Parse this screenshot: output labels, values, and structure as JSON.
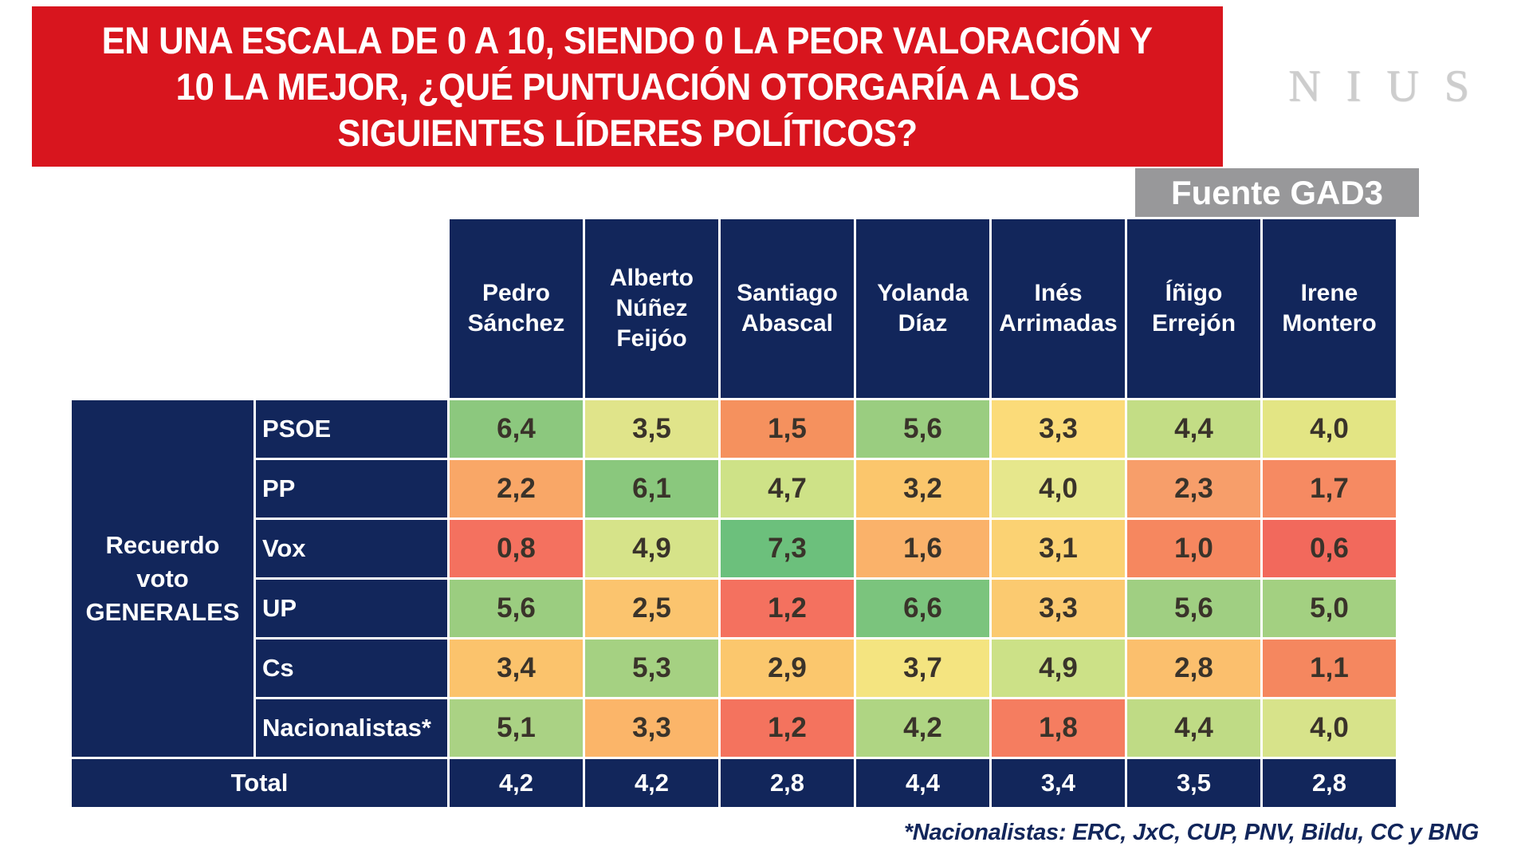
{
  "banner": {
    "lines": [
      "EN UNA ESCALA DE 0 A 10, SIENDO 0 LA PEOR VALORACIÓN Y",
      "10 LA MEJOR, ¿QUÉ PUNTUACIÓN OTORGARÍA A LOS",
      "SIGUIENTES LÍDERES POLÍTICOS?"
    ],
    "background": "#D8151E",
    "text_color": "#FFFFFF"
  },
  "logo": {
    "text": "NIUS",
    "color": "#CDCDCD"
  },
  "source": {
    "label": "Fuente GAD3",
    "background": "#98989A",
    "text_color": "#FFFFFF"
  },
  "table_theme": {
    "header_background": "#12265B",
    "header_text": "#FFFFFF",
    "cell_text": "#3A332A",
    "grid_line": "#FFFFFF"
  },
  "chart_data": {
    "type": "heatmap",
    "title": "EN UNA ESCALA DE 0 A 10, SIENDO 0 LA PEOR VALORACIÓN Y 10 LA MEJOR, ¿QUÉ PUNTUACIÓN OTORGARÍA A LOS SIGUIENTES LÍDERES POLÍTICOS?",
    "source": "Fuente GAD3",
    "scale": {
      "min": 0,
      "max": 10,
      "low_color": "#F8696B",
      "mid_color": "#FFEB84",
      "high_color": "#63BE7B"
    },
    "columns": [
      "Pedro Sánchez",
      "Alberto Núñez Feijóo",
      "Santiago Abascal",
      "Yolanda Díaz",
      "Inés Arrimadas",
      "Íñigo Errejón",
      "Irene Montero"
    ],
    "row_group_label": "Recuerdo voto GENERALES",
    "rows": [
      {
        "label": "PSOE",
        "values": [
          6.4,
          3.5,
          1.5,
          5.6,
          3.3,
          4.4,
          4.0
        ],
        "colors": [
          "#8CC87E",
          "#E0E48A",
          "#F5915E",
          "#9ACD80",
          "#FBDB79",
          "#C3DD85",
          "#E3E584"
        ]
      },
      {
        "label": "PP",
        "values": [
          2.2,
          6.1,
          4.7,
          3.2,
          4.0,
          2.3,
          1.7
        ],
        "colors": [
          "#F9A767",
          "#8AC87D",
          "#CEE287",
          "#FBC66C",
          "#E6E78C",
          "#F79E6A",
          "#F68A62"
        ]
      },
      {
        "label": "Vox",
        "values": [
          0.8,
          4.9,
          7.3,
          1.6,
          3.1,
          1.0,
          0.6
        ],
        "colors": [
          "#F4715F",
          "#D6E389",
          "#6CC07C",
          "#FAB26A",
          "#FBD273",
          "#F6875F",
          "#F2695C"
        ]
      },
      {
        "label": "UP",
        "values": [
          5.6,
          2.5,
          1.2,
          6.6,
          3.3,
          5.6,
          5.0
        ],
        "colors": [
          "#9BCD80",
          "#FBC46E",
          "#F4715F",
          "#7BC47D",
          "#FBCA70",
          "#A0CF82",
          "#A3D081"
        ]
      },
      {
        "label": "Cs",
        "values": [
          3.4,
          5.3,
          2.9,
          3.7,
          4.9,
          2.8,
          1.1
        ],
        "colors": [
          "#FBC36C",
          "#A5D182",
          "#FBC76D",
          "#F4E480",
          "#CCE187",
          "#FBBF6D",
          "#F5875F"
        ]
      },
      {
        "label": "Nacionalistas*",
        "values": [
          5.1,
          3.3,
          1.2,
          4.2,
          1.8,
          4.4,
          4.0
        ],
        "colors": [
          "#AAD284",
          "#FBB569",
          "#F4735E",
          "#AFD583",
          "#F57D60",
          "#BFDB85",
          "#D7E38A"
        ]
      }
    ],
    "total": {
      "label": "Total",
      "values": [
        4.2,
        4.2,
        2.8,
        4.4,
        3.4,
        3.5,
        2.8
      ]
    },
    "footnote": "*Nacionalistas: ERC, JxC, CUP, PNV, Bildu, CC y BNG",
    "decimal_separator": ","
  }
}
